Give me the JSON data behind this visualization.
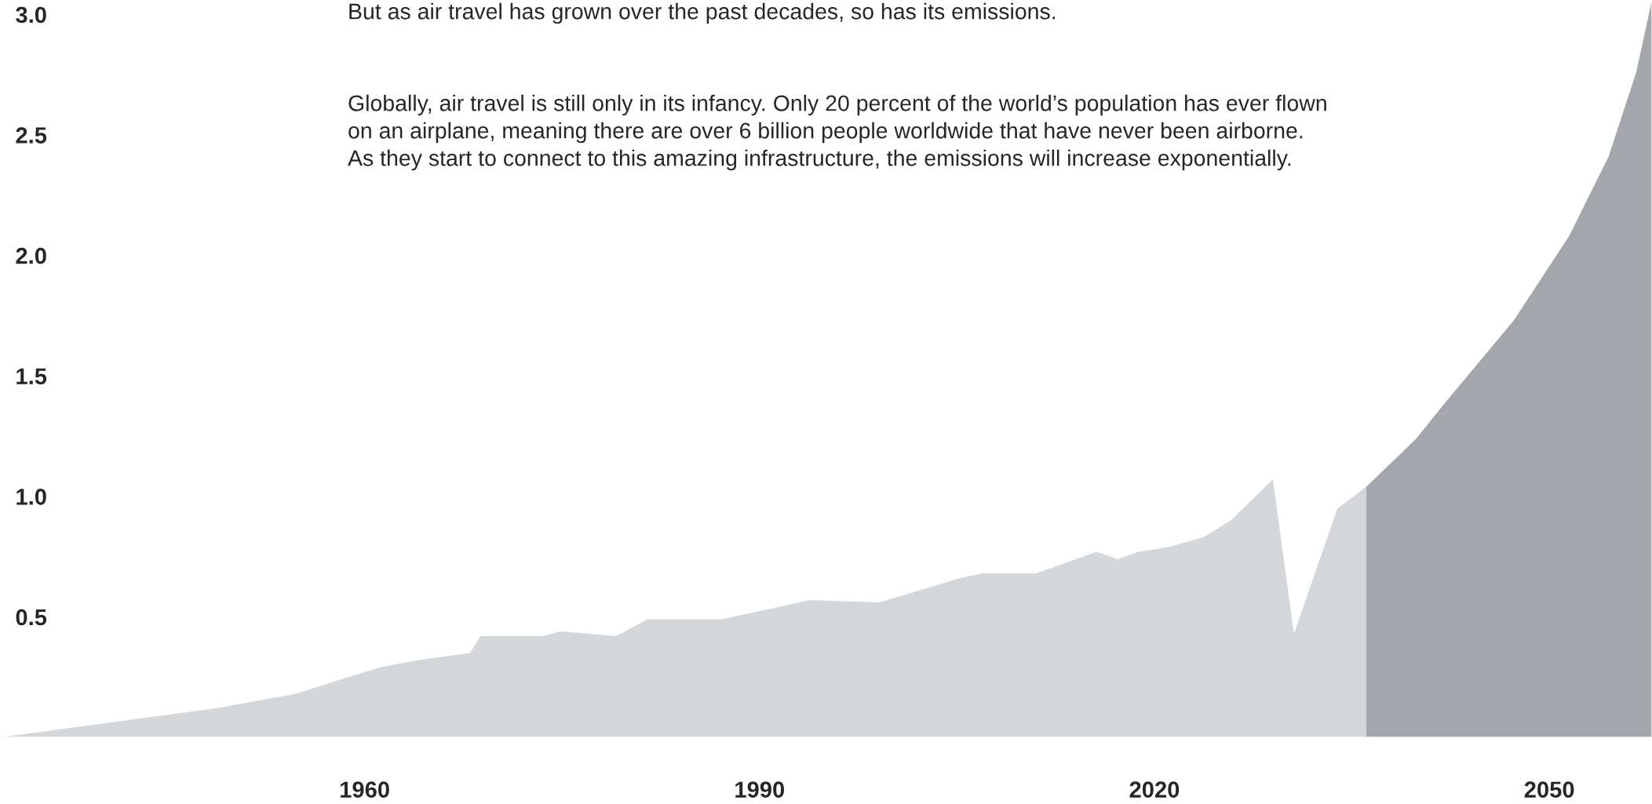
{
  "chart_data": {
    "type": "area",
    "annotations": [
      "But as air travel has grown over the past decades, so has its emissions.",
      "Globally, air travel is still only in its infancy. Only 20 percent of the world’s population has ever flown",
      "on an airplane, meaning there are over 6 billion people worldwide that have never been airborne.",
      "As they start to connect to this amazing infrastructure, the emissions will increase exponentially."
    ],
    "series": [
      {
        "color": "#d4d7da",
        "x": [
          1932.3,
          1948.6,
          1954.7,
          1961.1,
          1964,
          1968,
          1968.8,
          1973.5,
          1974.9,
          1979.1,
          1981.5,
          1987.1,
          1993.9,
          1999.1,
          2005.2,
          2006.9,
          2011,
          2015.6,
          2017.2,
          2018.8,
          2021.1,
          2023.7,
          2025.8,
          2029,
          2030.6,
          2033.9,
          2036.1
        ],
        "values": [
          0,
          0.12,
          0.18,
          0.29,
          0.32,
          0.35,
          0.42,
          0.42,
          0.44,
          0.42,
          0.49,
          0.49,
          0.57,
          0.56,
          0.66,
          0.68,
          0.68,
          0.77,
          0.74,
          0.77,
          0.79,
          0.83,
          0.9,
          1.07,
          0.43,
          0.95,
          1.04
        ]
      },
      {
        "color": "#a3a6aa",
        "x": [
          2036.1,
          2039.9,
          2041.8,
          2047.3,
          2051.5,
          2054.5,
          2056.6,
          2057.8
        ],
        "values": [
          1.04,
          1.24,
          1.37,
          1.73,
          2.08,
          2.41,
          2.76,
          3.06
        ]
      }
    ],
    "xlim": [
      1932.3,
      2057.8
    ],
    "ylim": [
      0,
      3.06
    ],
    "xticks": [
      1960,
      1990,
      2020,
      2050
    ],
    "yticks": [
      0.5,
      {
        "value": 1,
        "label": "1.0"
      },
      1.5,
      {
        "value": 2,
        "label": "2.0"
      },
      2.5,
      {
        "value": 3,
        "label": "3.0"
      }
    ],
    "grid": false,
    "legend": false
  }
}
